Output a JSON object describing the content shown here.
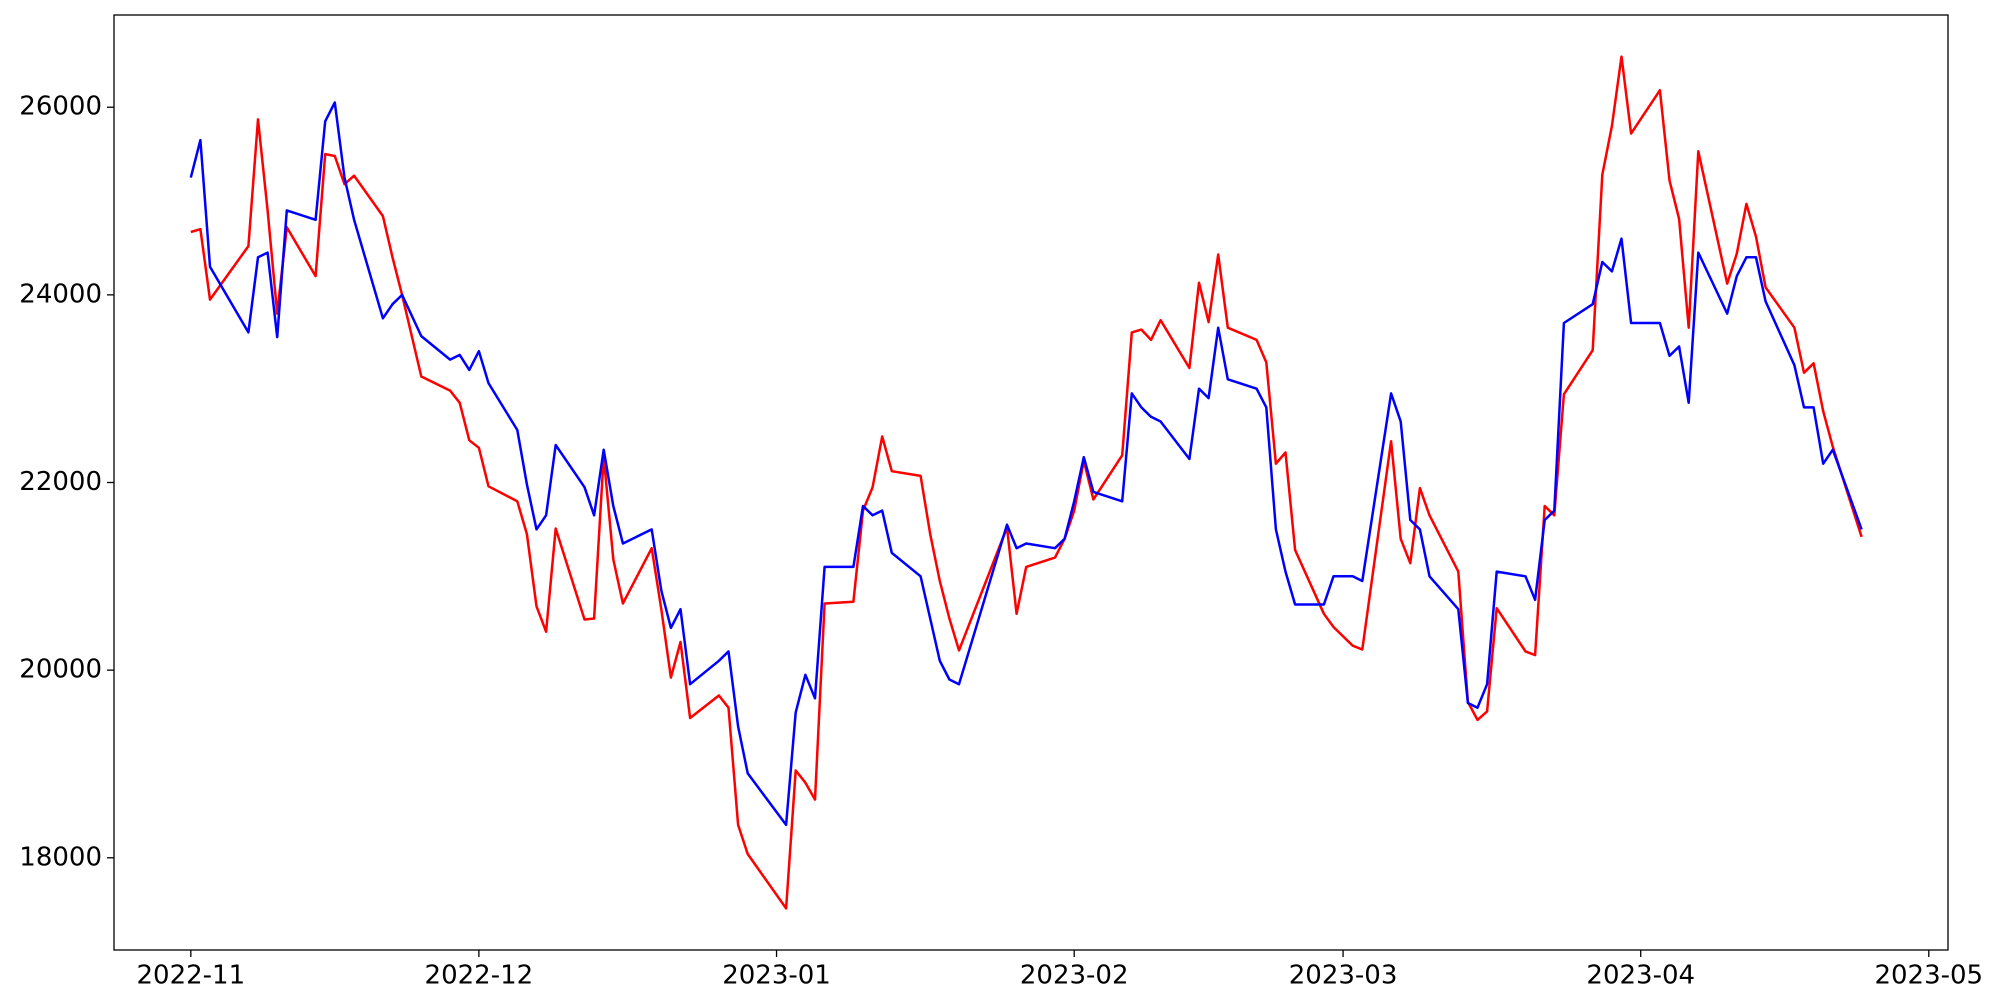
{
  "chart_data": {
    "type": "line",
    "x": [
      "2022-11-01",
      "2022-11-02",
      "2022-11-03",
      "2022-11-07",
      "2022-11-08",
      "2022-11-09",
      "2022-11-10",
      "2022-11-11",
      "2022-11-14",
      "2022-11-15",
      "2022-11-16",
      "2022-11-17",
      "2022-11-18",
      "2022-11-21",
      "2022-11-22",
      "2022-11-23",
      "2022-11-25",
      "2022-11-28",
      "2022-11-29",
      "2022-11-30",
      "2022-12-01",
      "2022-12-02",
      "2022-12-05",
      "2022-12-06",
      "2022-12-07",
      "2022-12-08",
      "2022-12-09",
      "2022-12-12",
      "2022-12-13",
      "2022-12-14",
      "2022-12-15",
      "2022-12-16",
      "2022-12-19",
      "2022-12-20",
      "2022-12-21",
      "2022-12-22",
      "2022-12-23",
      "2022-12-26",
      "2022-12-27",
      "2022-12-28",
      "2022-12-29",
      "2023-01-02",
      "2023-01-03",
      "2023-01-04",
      "2023-01-05",
      "2023-01-06",
      "2023-01-09",
      "2023-01-10",
      "2023-01-11",
      "2023-01-12",
      "2023-01-13",
      "2023-01-16",
      "2023-01-17",
      "2023-01-18",
      "2023-01-19",
      "2023-01-20",
      "2023-01-25",
      "2023-01-26",
      "2023-01-27",
      "2023-01-30",
      "2023-01-31",
      "2023-02-01",
      "2023-02-02",
      "2023-02-03",
      "2023-02-06",
      "2023-02-07",
      "2023-02-08",
      "2023-02-09",
      "2023-02-10",
      "2023-02-13",
      "2023-02-14",
      "2023-02-15",
      "2023-02-16",
      "2023-02-17",
      "2023-02-20",
      "2023-02-21",
      "2023-02-22",
      "2023-02-23",
      "2023-02-24",
      "2023-02-27",
      "2023-02-28",
      "2023-03-02",
      "2023-03-03",
      "2023-03-06",
      "2023-03-07",
      "2023-03-08",
      "2023-03-09",
      "2023-03-10",
      "2023-03-13",
      "2023-03-14",
      "2023-03-15",
      "2023-03-16",
      "2023-03-17",
      "2023-03-20",
      "2023-03-21",
      "2023-03-22",
      "2023-03-23",
      "2023-03-24",
      "2023-03-27",
      "2023-03-28",
      "2023-03-29",
      "2023-03-30",
      "2023-03-31",
      "2023-04-03",
      "2023-04-04",
      "2023-04-05",
      "2023-04-06",
      "2023-04-07",
      "2023-04-10",
      "2023-04-11",
      "2023-04-12",
      "2023-04-13",
      "2023-04-14",
      "2023-04-17",
      "2023-04-18",
      "2023-04-19",
      "2023-04-20",
      "2023-04-21",
      "2023-04-24"
    ],
    "series": [
      {
        "color": "#ff0000",
        "values": [
          24670,
          24700,
          23950,
          24520,
          25870,
          24900,
          23800,
          24720,
          24200,
          25500,
          25480,
          25180,
          25270,
          24840,
          24400,
          24000,
          23130,
          22980,
          22850,
          22450,
          22370,
          21960,
          21800,
          21450,
          20680,
          20410,
          21510,
          20540,
          20550,
          22280,
          21180,
          20710,
          21300,
          20650,
          19920,
          20300,
          19490,
          19730,
          19600,
          18350,
          18040,
          17460,
          18930,
          18800,
          18620,
          20710,
          20730,
          21700,
          21950,
          22490,
          22120,
          22070,
          21450,
          20950,
          20550,
          20210,
          21520,
          20600,
          21100,
          21200,
          21400,
          21700,
          22230,
          21820,
          22290,
          23600,
          23630,
          23520,
          23730,
          23220,
          24130,
          23710,
          24430,
          23650,
          23520,
          23280,
          22200,
          22320,
          21280,
          20600,
          20460,
          20260,
          20220,
          22440,
          21400,
          21140,
          21940,
          21650,
          21050,
          19660,
          19470,
          19560,
          20660,
          20200,
          20160,
          21750,
          21650,
          22940,
          23410,
          25280,
          25800,
          26540,
          25720,
          26180,
          25220,
          24810,
          23650,
          25530,
          24120,
          24440,
          24970,
          24620,
          24080,
          23650,
          23170,
          23270,
          22760,
          22380,
          21420
        ]
      },
      {
        "color": "#0000ff",
        "values": [
          25250,
          25650,
          24300,
          23600,
          24400,
          24450,
          23550,
          24900,
          24800,
          25850,
          26050,
          25250,
          24800,
          23750,
          23900,
          24000,
          23560,
          23310,
          23360,
          23200,
          23400,
          23060,
          22560,
          21980,
          21500,
          21650,
          22400,
          21950,
          21650,
          22350,
          21750,
          21350,
          21500,
          20850,
          20450,
          20650,
          19850,
          20100,
          20200,
          19400,
          18900,
          18350,
          19550,
          19950,
          19700,
          21100,
          21100,
          21750,
          21650,
          21700,
          21250,
          21000,
          20550,
          20100,
          19900,
          19850,
          21550,
          21300,
          21350,
          21300,
          21400,
          21800,
          22270,
          21900,
          21800,
          22950,
          22800,
          22700,
          22650,
          22250,
          23000,
          22900,
          23650,
          23100,
          23000,
          22800,
          21500,
          21050,
          20700,
          20700,
          21000,
          21000,
          20950,
          22950,
          22650,
          21600,
          21500,
          21000,
          20650,
          19650,
          19600,
          19850,
          21050,
          21000,
          20750,
          21600,
          21700,
          23700,
          23900,
          24350,
          24250,
          24600,
          23700,
          23700,
          23350,
          23450,
          22850,
          24450,
          23800,
          24200,
          24400,
          24400,
          23930,
          23250,
          22800,
          22800,
          22200,
          22350,
          21500
        ]
      }
    ],
    "xlim": [
      "2022-10-24",
      "2023-05-03"
    ],
    "xticks": [
      {
        "value": "2022-11-01",
        "label": "2022-11"
      },
      {
        "value": "2022-12-01",
        "label": "2022-12"
      },
      {
        "value": "2023-01-01",
        "label": "2023-01"
      },
      {
        "value": "2023-02-01",
        "label": "2023-02"
      },
      {
        "value": "2023-03-01",
        "label": "2023-03"
      },
      {
        "value": "2023-04-01",
        "label": "2023-04"
      },
      {
        "value": "2023-05-01",
        "label": "2023-05"
      }
    ],
    "ylim": [
      17017,
      26983
    ],
    "yticks": [
      18000,
      20000,
      22000,
      24000,
      26000
    ],
    "grid": false
  }
}
